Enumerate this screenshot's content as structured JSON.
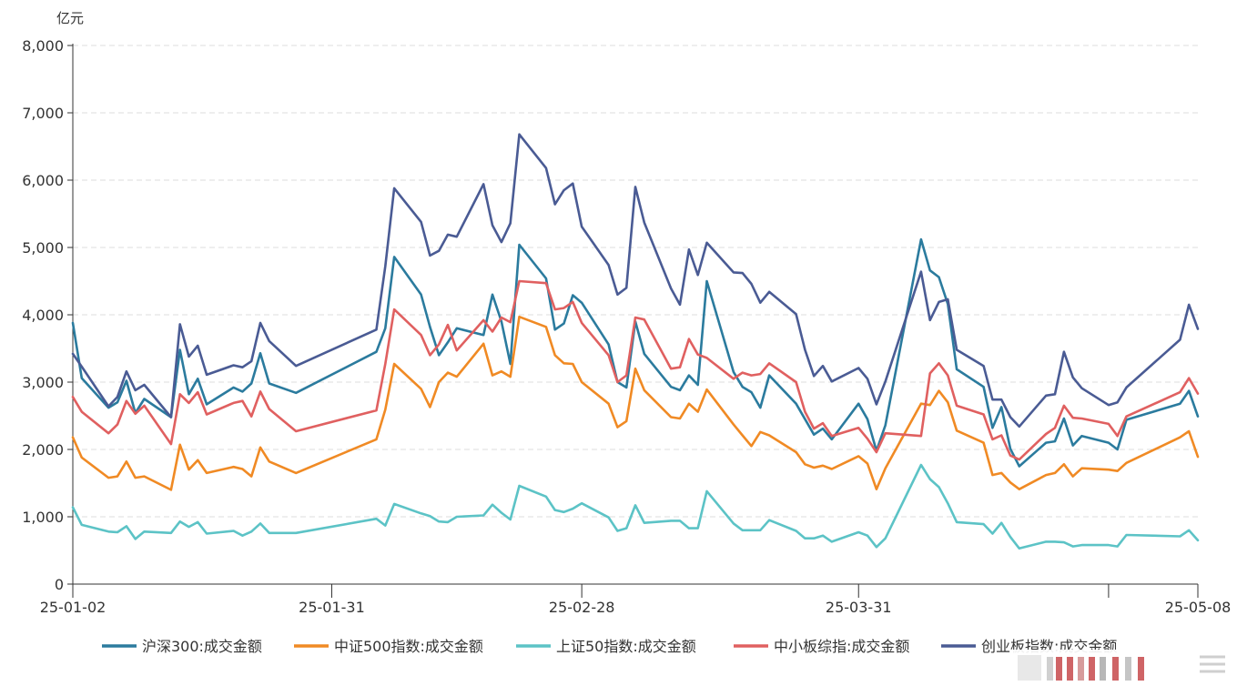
{
  "chart_data": {
    "type": "line",
    "ylabel": "亿元",
    "ylim": [
      0,
      8000
    ],
    "yticks": [
      "0",
      "1,000",
      "2,000",
      "3,000",
      "4,000",
      "5,000",
      "6,000",
      "7,000",
      "8,000"
    ],
    "xticks": [
      "25-01-02",
      "25-01-31",
      "25-02-28",
      "25-03-31",
      "25-05-08"
    ],
    "grid": true,
    "legend_position": "bottom",
    "x": [
      "2025-01-02",
      "2025-01-03",
      "2025-01-06",
      "2025-01-07",
      "2025-01-08",
      "2025-01-09",
      "2025-01-10",
      "2025-01-13",
      "2025-01-14",
      "2025-01-15",
      "2025-01-16",
      "2025-01-17",
      "2025-01-20",
      "2025-01-21",
      "2025-01-22",
      "2025-01-23",
      "2025-01-24",
      "2025-01-27",
      "2025-02-05",
      "2025-02-06",
      "2025-02-07",
      "2025-02-10",
      "2025-02-11",
      "2025-02-12",
      "2025-02-13",
      "2025-02-14",
      "2025-02-17",
      "2025-02-18",
      "2025-02-19",
      "2025-02-20",
      "2025-02-21",
      "2025-02-24",
      "2025-02-25",
      "2025-02-26",
      "2025-02-27",
      "2025-02-28",
      "2025-03-03",
      "2025-03-04",
      "2025-03-05",
      "2025-03-06",
      "2025-03-07",
      "2025-03-10",
      "2025-03-11",
      "2025-03-12",
      "2025-03-13",
      "2025-03-14",
      "2025-03-17",
      "2025-03-18",
      "2025-03-19",
      "2025-03-20",
      "2025-03-21",
      "2025-03-24",
      "2025-03-25",
      "2025-03-26",
      "2025-03-27",
      "2025-03-28",
      "2025-03-31",
      "2025-04-01",
      "2025-04-02",
      "2025-04-03",
      "2025-04-07",
      "2025-04-08",
      "2025-04-09",
      "2025-04-10",
      "2025-04-11",
      "2025-04-14",
      "2025-04-15",
      "2025-04-16",
      "2025-04-17",
      "2025-04-18",
      "2025-04-21",
      "2025-04-22",
      "2025-04-23",
      "2025-04-24",
      "2025-04-25",
      "2025-04-28",
      "2025-04-29",
      "2025-04-30",
      "2025-05-06",
      "2025-05-07",
      "2025-05-08"
    ],
    "series": [
      {
        "name": "沪深300:成交金额",
        "color": "#2b7b9e",
        "values": [
          3880,
          3060,
          2620,
          2700,
          3020,
          2540,
          2750,
          2480,
          3480,
          2820,
          3050,
          2670,
          2920,
          2860,
          2980,
          3430,
          2980,
          2840,
          3450,
          3800,
          4860,
          4300,
          3820,
          3400,
          3590,
          3800,
          3700,
          4300,
          3900,
          3270,
          5040,
          4540,
          3780,
          3870,
          4290,
          4180,
          3560,
          3000,
          2920,
          3900,
          3420,
          2930,
          2880,
          3100,
          2960,
          4500,
          3150,
          2930,
          2850,
          2620,
          3100,
          2680,
          2450,
          2220,
          2310,
          2150,
          2680,
          2450,
          1980,
          2360,
          5120,
          4660,
          4560,
          4160,
          3190,
          2930,
          2320,
          2630,
          2010,
          1750,
          2100,
          2120,
          2460,
          2060,
          2200,
          2100,
          2000,
          2440,
          2680,
          2870,
          2490
        ]
      },
      {
        "name": "中证500指数:成交金额",
        "color": "#f08a24",
        "values": [
          2180,
          1880,
          1580,
          1600,
          1820,
          1580,
          1600,
          1400,
          2070,
          1700,
          1840,
          1650,
          1740,
          1710,
          1600,
          2030,
          1820,
          1650,
          2150,
          2590,
          3270,
          2900,
          2630,
          3000,
          3140,
          3080,
          3570,
          3100,
          3160,
          3080,
          3970,
          3820,
          3400,
          3280,
          3270,
          3000,
          2680,
          2330,
          2420,
          3200,
          2880,
          2480,
          2460,
          2680,
          2560,
          2890,
          2370,
          2210,
          2050,
          2260,
          2210,
          1960,
          1780,
          1730,
          1760,
          1710,
          1900,
          1790,
          1410,
          1720,
          2680,
          2660,
          2870,
          2700,
          2280,
          2100,
          1620,
          1650,
          1510,
          1410,
          1620,
          1650,
          1780,
          1600,
          1720,
          1700,
          1680,
          1800,
          2180,
          2270,
          1890
        ]
      },
      {
        "name": "上证50指数:成交金额",
        "color": "#5cc3c6",
        "values": [
          1140,
          880,
          780,
          770,
          860,
          670,
          780,
          760,
          930,
          850,
          920,
          750,
          790,
          720,
          780,
          900,
          760,
          760,
          970,
          870,
          1190,
          1050,
          1010,
          930,
          920,
          1000,
          1020,
          1180,
          1060,
          960,
          1460,
          1300,
          1100,
          1070,
          1120,
          1200,
          990,
          790,
          830,
          1170,
          910,
          940,
          940,
          830,
          830,
          1380,
          900,
          800,
          800,
          800,
          950,
          790,
          680,
          680,
          720,
          630,
          770,
          720,
          550,
          680,
          1770,
          1560,
          1440,
          1200,
          920,
          890,
          750,
          910,
          700,
          530,
          630,
          630,
          620,
          560,
          580,
          580,
          560,
          730,
          710,
          800,
          650
        ]
      },
      {
        "name": "中小板综指:成交金额",
        "color": "#e06060",
        "values": [
          2780,
          2560,
          2240,
          2370,
          2720,
          2530,
          2650,
          2080,
          2820,
          2690,
          2850,
          2520,
          2690,
          2720,
          2490,
          2860,
          2600,
          2270,
          2580,
          3270,
          4080,
          3700,
          3400,
          3560,
          3850,
          3470,
          3920,
          3750,
          3960,
          3890,
          4500,
          4470,
          4080,
          4100,
          4190,
          3880,
          3400,
          3000,
          3100,
          3960,
          3930,
          3200,
          3220,
          3640,
          3410,
          3360,
          3050,
          3140,
          3100,
          3120,
          3280,
          3000,
          2560,
          2310,
          2390,
          2200,
          2320,
          2160,
          1960,
          2240,
          2200,
          3130,
          3280,
          3100,
          2650,
          2520,
          2150,
          2210,
          1910,
          1850,
          2230,
          2320,
          2650,
          2470,
          2460,
          2380,
          2200,
          2490,
          2850,
          3060,
          2830
        ]
      },
      {
        "name": "创业板指数:成交金额",
        "color": "#4a5b94",
        "values": [
          3420,
          3230,
          2640,
          2780,
          3160,
          2880,
          2960,
          2480,
          3860,
          3380,
          3540,
          3110,
          3250,
          3220,
          3310,
          3880,
          3610,
          3240,
          3780,
          4720,
          5880,
          5380,
          4880,
          4950,
          5190,
          5160,
          5940,
          5330,
          5080,
          5360,
          6680,
          6180,
          5640,
          5850,
          5950,
          5310,
          4740,
          4300,
          4400,
          5900,
          5370,
          4390,
          4150,
          4970,
          4590,
          5070,
          4630,
          4620,
          4460,
          4180,
          4340,
          4010,
          3480,
          3090,
          3240,
          3010,
          3210,
          3050,
          2670,
          3010,
          4640,
          3920,
          4190,
          4230,
          3480,
          3240,
          2740,
          2740,
          2480,
          2340,
          2800,
          2820,
          3450,
          3070,
          2910,
          2660,
          2700,
          2920,
          3630,
          4150,
          3790
        ]
      }
    ]
  },
  "watermark_text": "𝖫𝗂𝗇𝖽𝗂𝗋"
}
